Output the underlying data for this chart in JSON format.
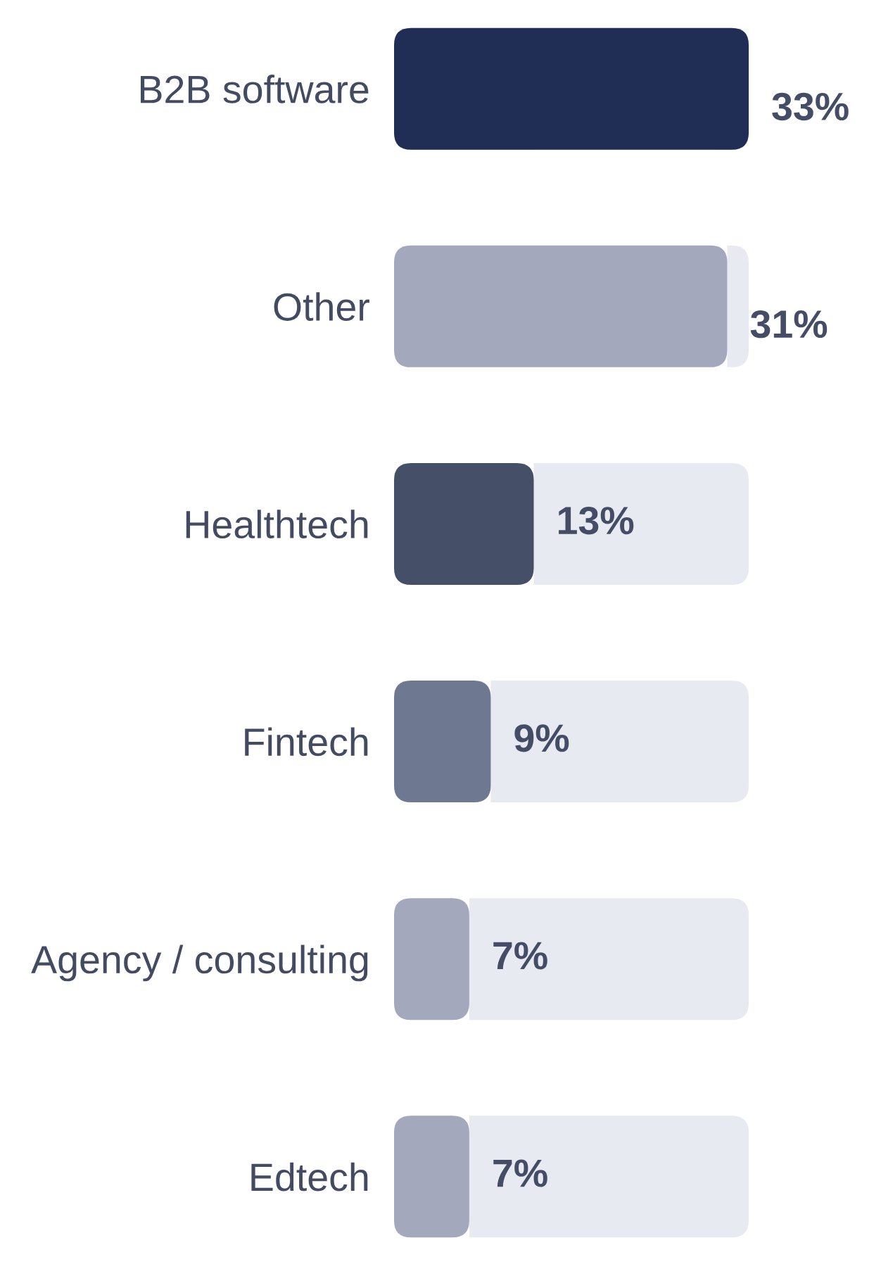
{
  "chart_data": {
    "type": "bar",
    "orientation": "horizontal",
    "stacked": true,
    "tick_labels": "y",
    "categories": [
      "B2B software",
      "Other",
      "Healthtech",
      "Fintech",
      "Agency / consulting",
      "Edtech"
    ],
    "series": [
      {
        "values": [
          33,
          31,
          13,
          9,
          7,
          7
        ],
        "colors": [
          "#202e55",
          "#a3a8bd",
          "#454f67",
          "#6e7891",
          "#a3a8bd",
          "#a3a8bd"
        ],
        "value_labels": [
          "33%",
          "31%",
          "13%",
          "9%",
          "7%",
          "7%"
        ]
      },
      {
        "values": [
          0,
          2,
          20,
          24,
          26,
          26
        ],
        "color": "#e8eaf2"
      }
    ]
  }
}
